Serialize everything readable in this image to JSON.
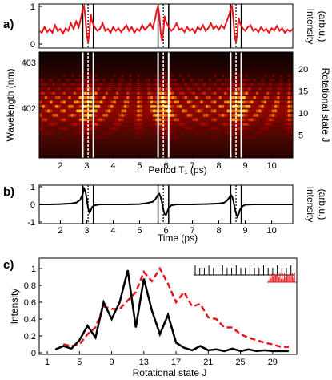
{
  "panel_labels": {
    "a": "a)",
    "b": "b)",
    "c": "c)"
  },
  "colors": {
    "red": "#e8141c",
    "black": "#000000",
    "dark": "#0a0000"
  },
  "chart_data": [
    {
      "id": "a_top",
      "type": "line",
      "ylabel": "Intensity",
      "ylabel2": "(arb.u.)",
      "ylim": [
        0,
        1
      ],
      "yticks": [
        "0",
        "1"
      ],
      "xlim": [
        1.2,
        10.8
      ],
      "x": [
        1.2,
        1.3,
        1.4,
        1.5,
        1.6,
        1.7,
        1.8,
        1.9,
        2.0,
        2.1,
        2.2,
        2.3,
        2.4,
        2.5,
        2.6,
        2.7,
        2.8,
        2.85,
        2.9,
        2.95,
        3.0,
        3.05,
        3.1,
        3.15,
        3.2,
        3.3,
        3.4,
        3.5,
        3.6,
        3.7,
        3.8,
        3.9,
        4.0,
        4.1,
        4.2,
        4.3,
        4.4,
        4.5,
        4.6,
        4.7,
        4.8,
        4.9,
        5.0,
        5.1,
        5.2,
        5.3,
        5.4,
        5.5,
        5.6,
        5.65,
        5.7,
        5.75,
        5.8,
        5.85,
        5.9,
        5.95,
        6.0,
        6.1,
        6.2,
        6.3,
        6.4,
        6.5,
        6.6,
        6.7,
        6.8,
        6.9,
        7.0,
        7.1,
        7.2,
        7.3,
        7.4,
        7.5,
        7.6,
        7.7,
        7.8,
        7.9,
        8.0,
        8.1,
        8.2,
        8.3,
        8.4,
        8.45,
        8.5,
        8.55,
        8.6,
        8.65,
        8.7,
        8.75,
        8.8,
        8.9,
        9.0,
        9.1,
        9.2,
        9.3,
        9.4,
        9.5,
        9.6,
        9.7,
        9.8,
        9.9,
        10.0,
        10.1,
        10.2,
        10.3,
        10.4,
        10.5,
        10.6,
        10.7,
        10.8
      ],
      "y": [
        0.35,
        0.3,
        0.45,
        0.32,
        0.4,
        0.3,
        0.5,
        0.35,
        0.4,
        0.28,
        0.42,
        0.35,
        0.55,
        0.4,
        0.6,
        0.45,
        0.75,
        0.95,
        1.0,
        0.7,
        0.25,
        0.05,
        0.3,
        0.8,
        0.6,
        0.45,
        0.35,
        0.4,
        0.55,
        0.35,
        0.4,
        0.3,
        0.45,
        0.35,
        0.42,
        0.32,
        0.4,
        0.5,
        0.35,
        0.45,
        0.3,
        0.4,
        0.35,
        0.5,
        0.38,
        0.45,
        0.55,
        0.42,
        0.7,
        0.9,
        1.0,
        0.75,
        0.3,
        0.08,
        0.35,
        0.75,
        0.6,
        0.45,
        0.35,
        0.42,
        0.55,
        0.38,
        0.42,
        0.32,
        0.45,
        0.35,
        0.4,
        0.3,
        0.45,
        0.38,
        0.5,
        0.35,
        0.42,
        0.55,
        0.4,
        0.48,
        0.38,
        0.5,
        0.42,
        0.6,
        0.8,
        0.95,
        1.0,
        0.65,
        0.2,
        0.05,
        0.3,
        0.7,
        0.55,
        0.42,
        0.35,
        0.45,
        0.5,
        0.35,
        0.4,
        0.32,
        0.45,
        0.35,
        0.4,
        0.3,
        0.42,
        0.36,
        0.48,
        0.35,
        0.42,
        0.3,
        0.38,
        0.33,
        0.4
      ],
      "solid_lines": [
        2.85,
        3.25,
        5.7,
        6.1,
        8.45,
        8.85
      ],
      "dashed_lines": [
        3.05,
        5.9,
        8.65
      ]
    },
    {
      "id": "a_heatmap",
      "type": "heatmap",
      "xlabel": "Period T₁ (ps)",
      "xticks": [
        "2",
        "3",
        "4",
        "5",
        "6",
        "7",
        "8",
        "9",
        "10"
      ],
      "xlim": [
        1.2,
        10.8
      ],
      "ylabel_left": "Wavelength (nm)",
      "yticks_left": [
        "402",
        "403"
      ],
      "ylabel_right": "Rotational state  J",
      "yticks_right": [
        "5",
        "10",
        "15",
        "20"
      ],
      "solid_lines": [
        2.85,
        3.25,
        5.7,
        6.1,
        8.45,
        8.85
      ],
      "dashed_lines": [
        3.05,
        5.9,
        8.65
      ]
    },
    {
      "id": "b",
      "type": "line",
      "xlabel": "Time (ps)",
      "ylabel": "Intensity",
      "ylabel2": "(arb.u.)",
      "ylim": [
        -1,
        1
      ],
      "yticks": [
        "-1",
        "0",
        "1"
      ],
      "xticks": [
        "2",
        "3",
        "4",
        "5",
        "6",
        "7",
        "8",
        "9",
        "10"
      ],
      "xlim": [
        1.2,
        10.8
      ],
      "x": [
        1.2,
        1.6,
        2.0,
        2.4,
        2.6,
        2.75,
        2.85,
        2.9,
        2.95,
        3.0,
        3.05,
        3.1,
        3.15,
        3.2,
        3.3,
        3.5,
        4.0,
        4.5,
        5.0,
        5.3,
        5.5,
        5.6,
        5.7,
        5.75,
        5.8,
        5.85,
        5.9,
        5.95,
        6.0,
        6.05,
        6.1,
        6.2,
        6.4,
        7.0,
        7.5,
        8.0,
        8.2,
        8.3,
        8.4,
        8.45,
        8.5,
        8.55,
        8.6,
        8.65,
        8.7,
        8.75,
        8.8,
        8.9,
        9.0,
        9.3,
        9.8,
        10.3,
        10.8
      ],
      "y": [
        0.0,
        0.0,
        0.02,
        0.05,
        0.1,
        0.25,
        0.6,
        0.9,
        0.75,
        0.3,
        -0.2,
        -0.45,
        -0.35,
        -0.15,
        -0.05,
        0.0,
        0.0,
        0.0,
        0.02,
        0.08,
        0.15,
        0.3,
        0.55,
        0.6,
        0.4,
        0.1,
        -0.3,
        -0.55,
        -0.6,
        -0.4,
        -0.2,
        -0.05,
        0.0,
        0.0,
        0.02,
        0.05,
        0.1,
        0.2,
        0.4,
        0.55,
        0.45,
        0.2,
        -0.2,
        -0.5,
        -0.7,
        -0.55,
        -0.3,
        -0.1,
        -0.02,
        0.0,
        0.0,
        0.0,
        0.0
      ],
      "solid_lines": [
        2.85,
        3.25,
        5.7,
        6.1,
        8.45,
        8.85
      ],
      "dashed_lines": [
        3.05,
        5.9,
        8.65
      ]
    },
    {
      "id": "c",
      "type": "line",
      "xlabel": "Rotational state  J",
      "ylabel": "Intensity",
      "ylim": [
        0,
        1
      ],
      "yticks": [
        "0",
        "0.2",
        "0.4",
        "0.6",
        "0.8",
        "1"
      ],
      "xticks": [
        "1",
        "5",
        "9",
        "13",
        "17",
        "21",
        "25",
        "29"
      ],
      "xlim": [
        0,
        32
      ],
      "series": [
        {
          "style": "solid-black",
          "x": [
            2,
            3,
            4,
            5,
            6,
            7,
            8,
            9,
            10,
            11,
            12,
            13,
            14,
            15,
            16,
            17,
            18,
            19,
            20,
            21,
            22,
            23,
            24,
            25,
            26,
            27,
            28,
            29,
            30,
            31
          ],
          "y": [
            0.04,
            0.08,
            0.05,
            0.15,
            0.32,
            0.18,
            0.6,
            0.4,
            0.6,
            0.98,
            0.3,
            0.88,
            0.5,
            0.22,
            0.45,
            0.12,
            0.06,
            0.03,
            0.08,
            0.03,
            0.04,
            0.02,
            0.05,
            0.02,
            0.04,
            0.02,
            0.03,
            0.02,
            0.02,
            0.02
          ]
        },
        {
          "style": "dashed-red",
          "x": [
            3,
            4,
            5,
            6,
            7,
            8,
            9,
            10,
            11,
            12,
            13,
            14,
            15,
            16,
            17,
            18,
            19,
            20,
            21,
            22,
            23,
            24,
            25,
            26,
            27,
            28,
            29,
            30,
            31
          ],
          "y": [
            0.1,
            0.08,
            0.1,
            0.22,
            0.3,
            0.55,
            0.52,
            0.52,
            0.62,
            0.72,
            0.96,
            0.85,
            1.0,
            0.82,
            0.6,
            0.72,
            0.55,
            0.58,
            0.42,
            0.4,
            0.3,
            0.3,
            0.22,
            0.18,
            0.15,
            0.12,
            0.1,
            0.07,
            0.07
          ]
        }
      ]
    }
  ]
}
